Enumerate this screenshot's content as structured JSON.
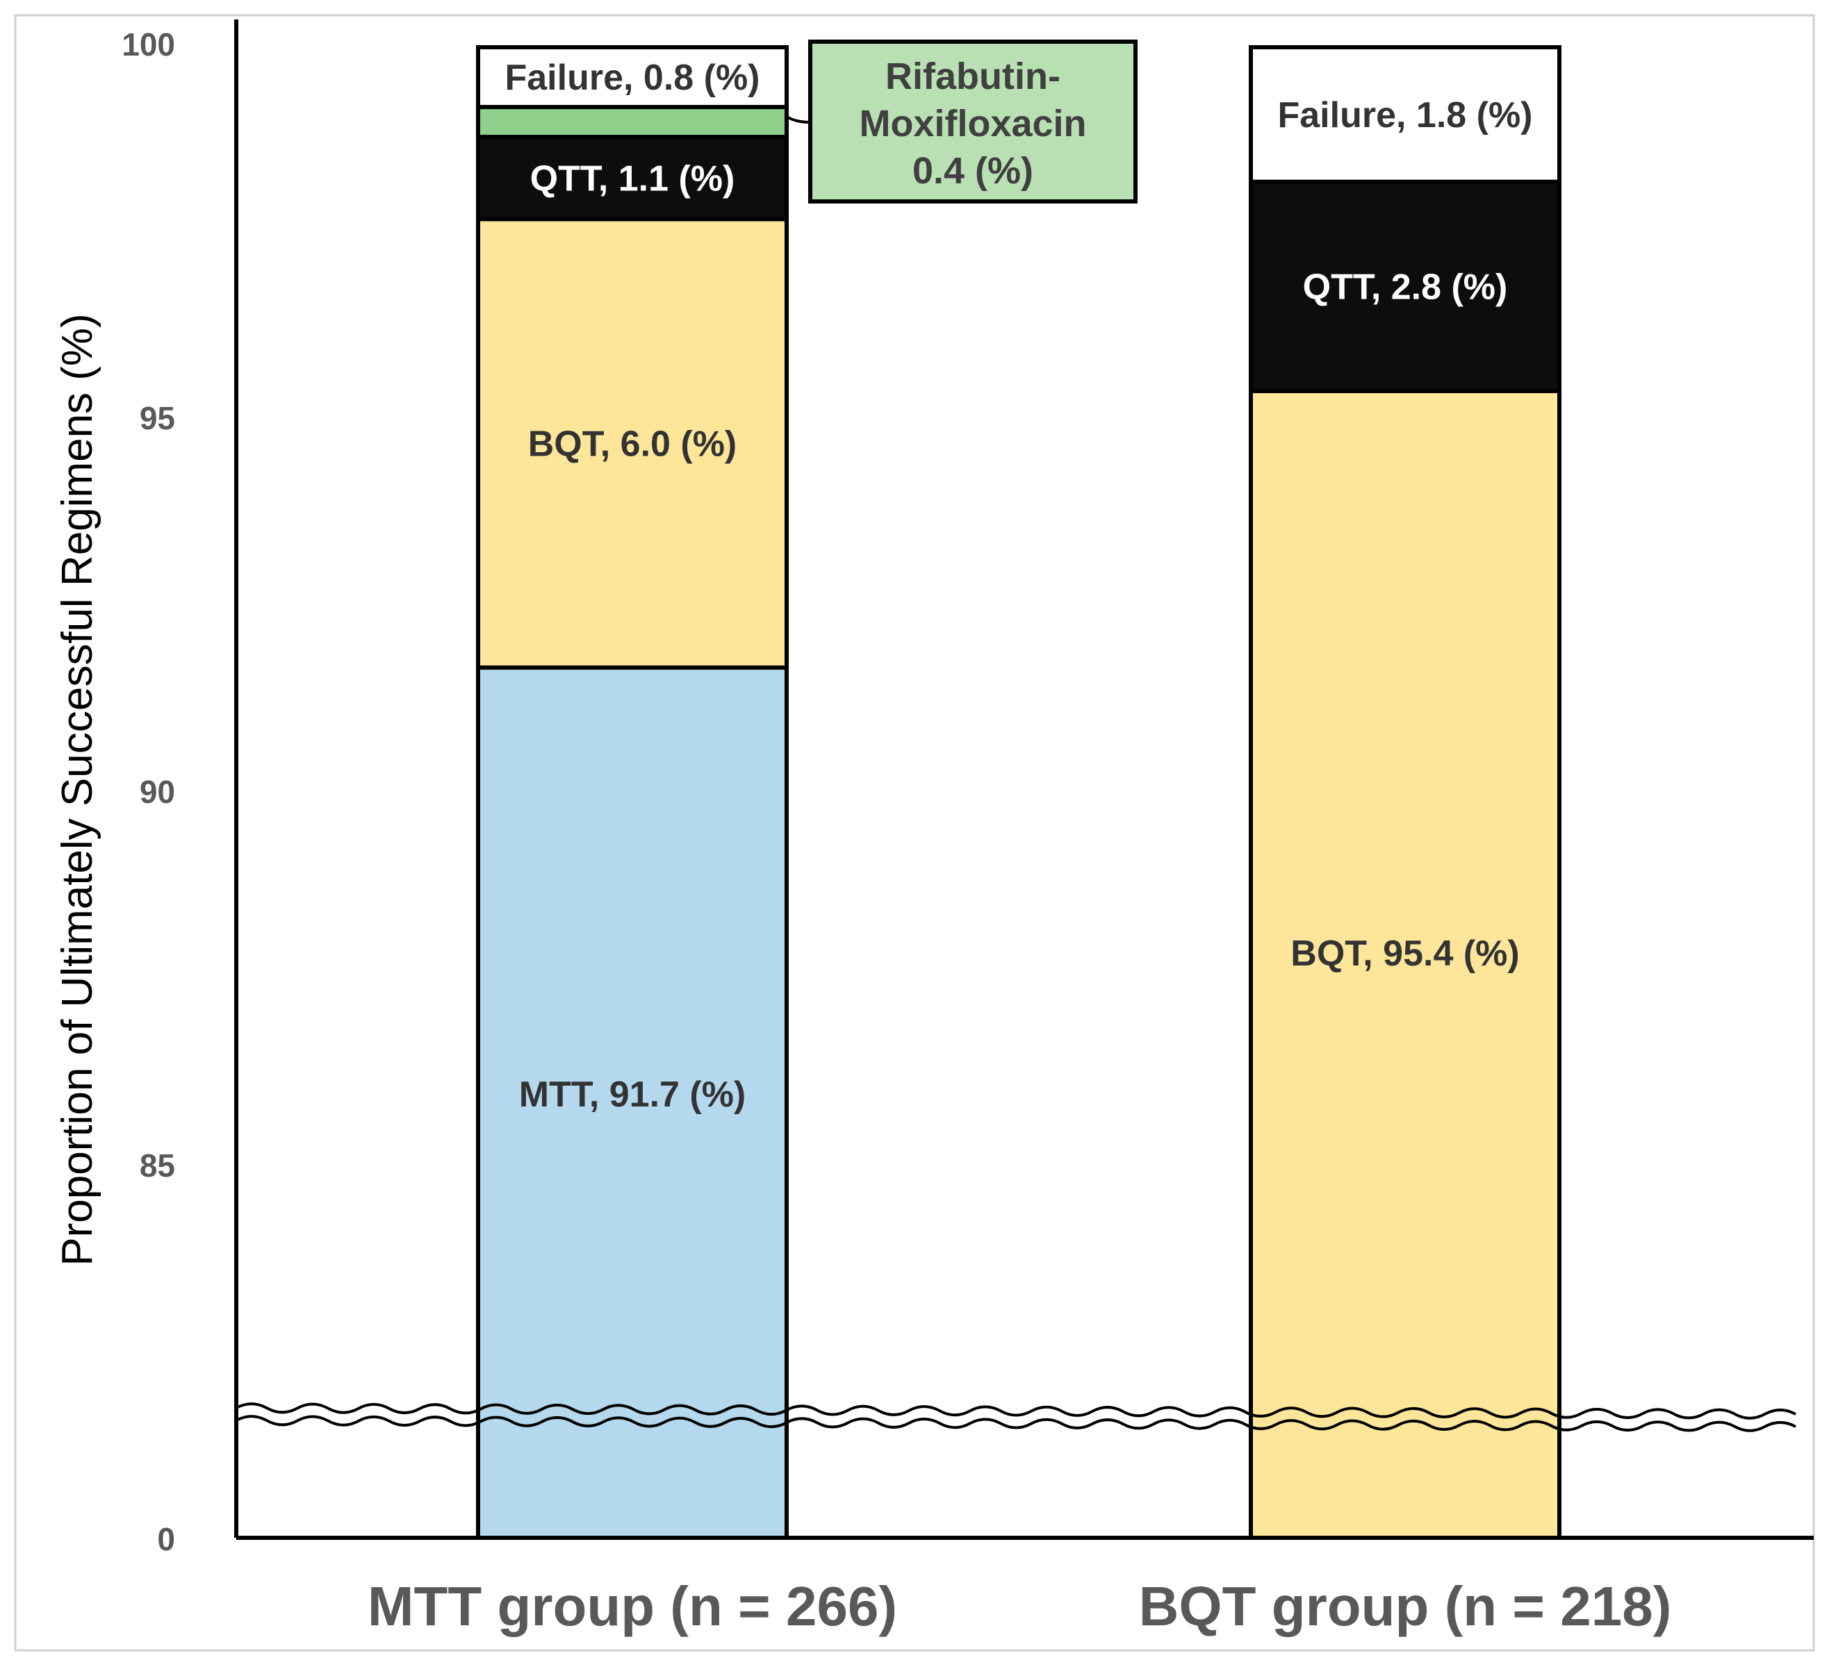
{
  "chart_data": {
    "type": "bar",
    "stacked": true,
    "ylabel": "Proportion of Ultimately Successful Regimens (%)",
    "xlabel": "",
    "yaxis_break": true,
    "ylim": [
      0,
      100
    ],
    "yticks": [
      "0",
      "85",
      "90",
      "95",
      "100"
    ],
    "visible_range_above_break": [
      84,
      100
    ],
    "categories": [
      "MTT group (n = 266)",
      "BQT group (n = 218)"
    ],
    "bars": [
      {
        "category": "MTT group (n = 266)",
        "segments": [
          {
            "name": "MTT",
            "value": 91.7,
            "label": "MTT, 91.7 (%)",
            "color": "#b4d8ee",
            "text_color": "#333333"
          },
          {
            "name": "BQT",
            "value": 6.0,
            "label": "BQT, 6.0 (%)",
            "color": "#fde69a",
            "text_color": "#333333"
          },
          {
            "name": "QTT",
            "value": 1.1,
            "label": "QTT, 1.1 (%)",
            "color": "#0f0c0d",
            "text_color": "#ffffff"
          },
          {
            "name": "Rifabutin-Moxifloxacin",
            "value": 0.4,
            "label": "",
            "color": "#8fd18c",
            "text_color": "#333333"
          },
          {
            "name": "Failure",
            "value": 0.8,
            "label": "Failure, 0.8 (%)",
            "color": "#ffffff",
            "text_color": "#333333"
          }
        ],
        "callout": {
          "lines": [
            "Rifabutin-",
            "Moxifloxacin",
            "0.4 (%)"
          ],
          "color": "#b9e0b3"
        }
      },
      {
        "category": "BQT group (n = 218)",
        "segments": [
          {
            "name": "BQT",
            "value": 95.4,
            "label": "BQT, 95.4 (%)",
            "color": "#fde69a",
            "text_color": "#333333"
          },
          {
            "name": "QTT",
            "value": 2.8,
            "label": "QTT, 2.8 (%)",
            "color": "#0f0c0d",
            "text_color": "#ffffff"
          },
          {
            "name": "Failure",
            "value": 1.8,
            "label": "Failure, 1.8 (%)",
            "color": "#ffffff",
            "text_color": "#333333"
          }
        ]
      }
    ]
  }
}
